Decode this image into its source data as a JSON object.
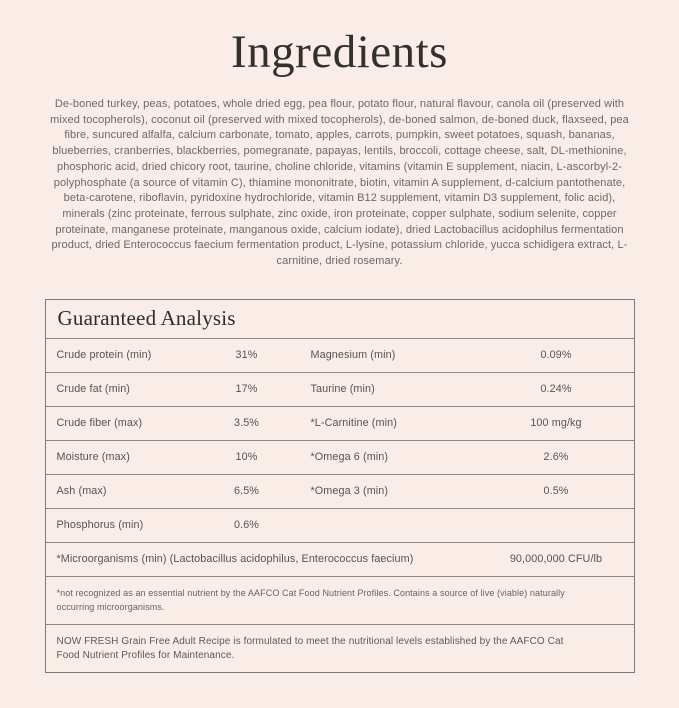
{
  "colors": {
    "background": "#faece6",
    "title_text": "#33312b",
    "body_text": "#6c6a64",
    "table_text": "#57554f",
    "table_border": "#8b8983"
  },
  "page": {
    "title": "Ingredients",
    "ingredients_text": "De-boned turkey, peas, potatoes, whole dried egg, pea flour, potato flour, natural flavour, canola oil (preserved with mixed tocopherols), coconut oil (preserved with mixed tocopherols), de-boned salmon, de-boned duck, flaxseed, pea fibre, suncured alfalfa, calcium carbonate, tomato, apples, carrots, pumpkin, sweet potatoes, squash, bananas, blueberries, cranberries, blackberries, pomegranate, papayas, lentils, broccoli, cottage cheese, salt, DL-methionine, phosphoric acid, dried chicory root, taurine, choline chloride, vitamins (vitamin E supplement, niacin, L-ascorbyl-2-polyphosphate (a source of vitamin C), thiamine mononitrate, biotin, vitamin A supplement, d-calcium pantothenate, beta-carotene, riboflavin, pyridoxine hydrochloride, vitamin B12 supplement, vitamin D3 supplement, folic acid), minerals (zinc proteinate, ferrous sulphate, zinc oxide, iron proteinate, copper sulphate, sodium selenite, copper proteinate, manganese proteinate, manganous oxide, calcium iodate), dried Lactobacillus acidophilus fermentation product, dried Enterococcus faecium fermentation product, L-lysine, potassium chloride, yucca schidigera extract, L-carnitine, dried rosemary."
  },
  "analysis": {
    "title": "Guaranteed Analysis",
    "rows": [
      {
        "l1": "Crude protein (min)",
        "v1": "31%",
        "l2": "Magnesium (min)",
        "v2": "0.09%"
      },
      {
        "l1": "Crude fat (min)",
        "v1": "17%",
        "l2": "Taurine (min)",
        "v2": "0.24%"
      },
      {
        "l1": "Crude fiber (max)",
        "v1": "3.5%",
        "l2": "*L-Carnitine (min)",
        "v2": "100 mg/kg"
      },
      {
        "l1": "Moisture (max)",
        "v1": "10%",
        "l2": "*Omega 6 (min)",
        "v2": "2.6%"
      },
      {
        "l1": "Ash (max)",
        "v1": "6.5%",
        "l2": "*Omega 3 (min)",
        "v2": "0.5%"
      },
      {
        "l1": "Phosphorus (min)",
        "v1": "0.6%",
        "l2": "",
        "v2": ""
      }
    ],
    "microorganisms": {
      "label": "*Microorganisms (min) (Lactobacillus acidophilus, Enterococcus faecium)",
      "value": "90,000,000 CFU/lb"
    },
    "footnote": "*not recognized as an essential nutrient by the AAFCO Cat Food Nutrient Profiles. Contains a source of live (viable) naturally occurring microorganisms.",
    "statement": "NOW FRESH Grain Free Adult Recipe is formulated to meet the nutritional levels established by the AAFCO Cat Food Nutrient Profiles for Maintenance."
  }
}
